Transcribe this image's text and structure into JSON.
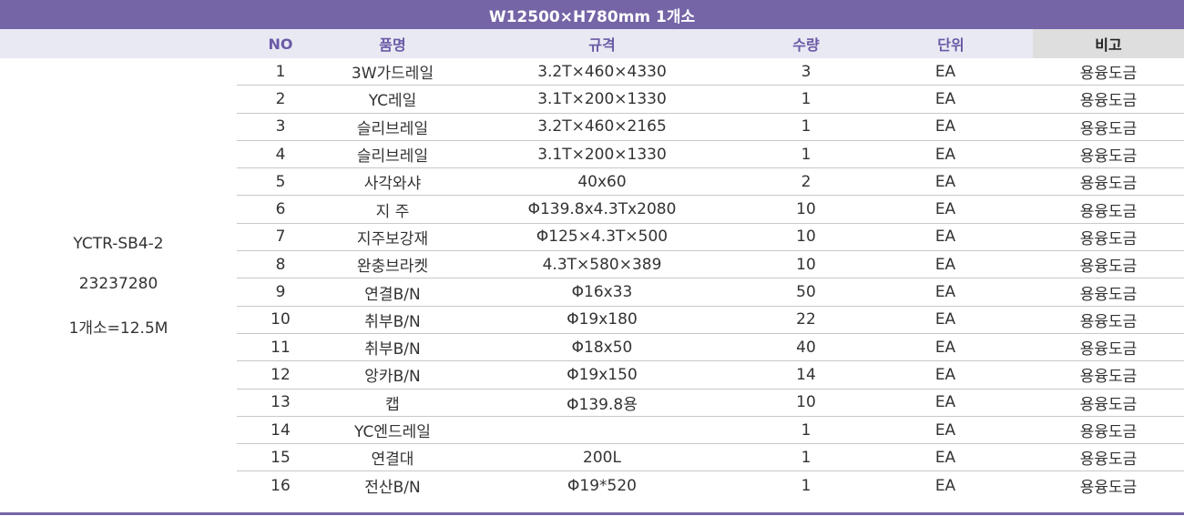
{
  "title": "W12500×H780mm 1개소",
  "headers": {
    "no": "NO",
    "name": "품명",
    "spec": "규격",
    "qty": "수량",
    "unit": "단위",
    "note": "비고"
  },
  "side": {
    "model": "YCTR-SB4-2",
    "code": "23237280",
    "length": "1개소=12.5M"
  },
  "rows": [
    {
      "no": "1",
      "name": "3W가드레일",
      "spec": "3.2T×460×4330",
      "qty": "3",
      "unit": "EA",
      "note": "용융도금"
    },
    {
      "no": "2",
      "name": "YC레일",
      "spec": "3.1T×200×1330",
      "qty": "1",
      "unit": "EA",
      "note": "용융도금"
    },
    {
      "no": "3",
      "name": "슬리브레일",
      "spec": "3.2T×460×2165",
      "qty": "1",
      "unit": "EA",
      "note": "용융도금"
    },
    {
      "no": "4",
      "name": "슬리브레일",
      "spec": "3.1T×200×1330",
      "qty": "1",
      "unit": "EA",
      "note": "용융도금"
    },
    {
      "no": "5",
      "name": "사각와샤",
      "spec": "40x60",
      "qty": "2",
      "unit": "EA",
      "note": "용융도금"
    },
    {
      "no": "6",
      "name": "지 주",
      "spec": "Φ139.8x4.3Tx2080",
      "qty": "10",
      "unit": "EA",
      "note": "용융도금"
    },
    {
      "no": "7",
      "name": "지주보강재",
      "spec": "Φ125×4.3T×500",
      "qty": "10",
      "unit": "EA",
      "note": "용융도금"
    },
    {
      "no": "8",
      "name": "완충브라켓",
      "spec": "4.3T×580×389",
      "qty": "10",
      "unit": "EA",
      "note": "용융도금"
    },
    {
      "no": "9",
      "name": "연결B/N",
      "spec": "Φ16x33",
      "qty": "50",
      "unit": "EA",
      "note": "용융도금"
    },
    {
      "no": "10",
      "name": "취부B/N",
      "spec": "Φ19x180",
      "qty": "22",
      "unit": "EA",
      "note": "용융도금"
    },
    {
      "no": "11",
      "name": "취부B/N",
      "spec": "Φ18x50",
      "qty": "40",
      "unit": "EA",
      "note": "용융도금"
    },
    {
      "no": "12",
      "name": "앙카B/N",
      "spec": "Φ19x150",
      "qty": "14",
      "unit": "EA",
      "note": "용융도금"
    },
    {
      "no": "13",
      "name": "캡",
      "spec": "Φ139.8용",
      "qty": "10",
      "unit": "EA",
      "note": "용융도금"
    },
    {
      "no": "14",
      "name": "YC엔드레일",
      "spec": "",
      "qty": "1",
      "unit": "EA",
      "note": "용융도금"
    },
    {
      "no": "15",
      "name": "연결대",
      "spec": "200L",
      "qty": "1",
      "unit": "EA",
      "note": "용융도금"
    },
    {
      "no": "16",
      "name": "전산B/N",
      "spec": "Φ19*520",
      "qty": "1",
      "unit": "EA",
      "note": "용융도금"
    }
  ]
}
